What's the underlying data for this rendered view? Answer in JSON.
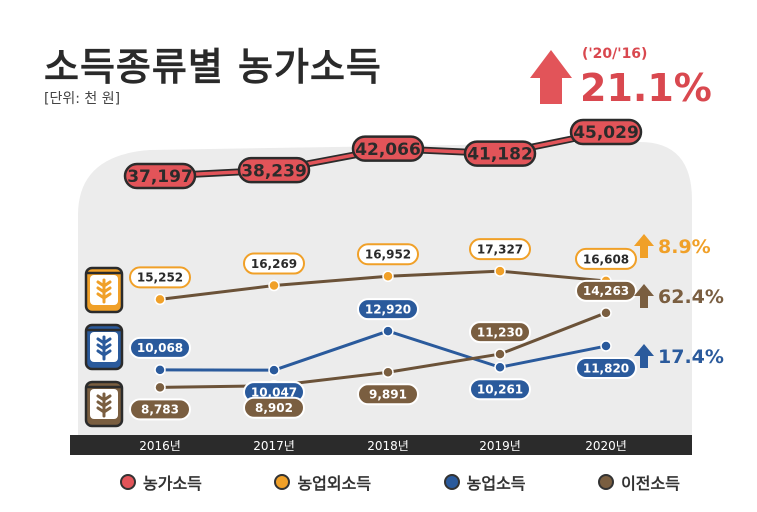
{
  "header": {
    "title": "소득종류별 농가소득",
    "unit": "[단위: 천 원]",
    "period": "('20/'16)",
    "total_growth": "21.1%"
  },
  "colors": {
    "total": "#e25459",
    "nonfarm": "#f0a028",
    "farm": "#2a5a9c",
    "transfer": "#7a5e40",
    "axis_bar": "#2b2b2b",
    "panel": "#ededed"
  },
  "chart_data": {
    "type": "line",
    "categories": [
      "2016년",
      "2017년",
      "2018년",
      "2019년",
      "2020년"
    ],
    "series": [
      {
        "name": "농가소득",
        "key": "total",
        "values": [
          37197,
          38239,
          42066,
          41182,
          45029
        ],
        "labels": [
          "37,197",
          "38,239",
          "42,066",
          "41,182",
          "45,029"
        ],
        "growth": "21.1%"
      },
      {
        "name": "농업외소득",
        "key": "nonfarm",
        "values": [
          15252,
          16269,
          16952,
          17327,
          16608
        ],
        "labels": [
          "15,252",
          "16,269",
          "16,952",
          "17,327",
          "16,608"
        ],
        "growth": "8.9%"
      },
      {
        "name": "농업소득",
        "key": "farm",
        "values": [
          10068,
          10047,
          12920,
          10261,
          11820
        ],
        "labels": [
          "10,068",
          "10,047",
          "12,920",
          "10,261",
          "11,820"
        ],
        "growth": "17.4%"
      },
      {
        "name": "이전소득",
        "key": "transfer",
        "values": [
          8783,
          8902,
          9891,
          11230,
          14263
        ],
        "labels": [
          "8,783",
          "8,902",
          "9,891",
          "11,230",
          "14,263"
        ],
        "growth": "62.4%"
      }
    ]
  },
  "legend": [
    {
      "label": "농가소득",
      "key": "total"
    },
    {
      "label": "농업외소득",
      "key": "nonfarm"
    },
    {
      "label": "농업소득",
      "key": "farm"
    },
    {
      "label": "이전소득",
      "key": "transfer"
    }
  ]
}
